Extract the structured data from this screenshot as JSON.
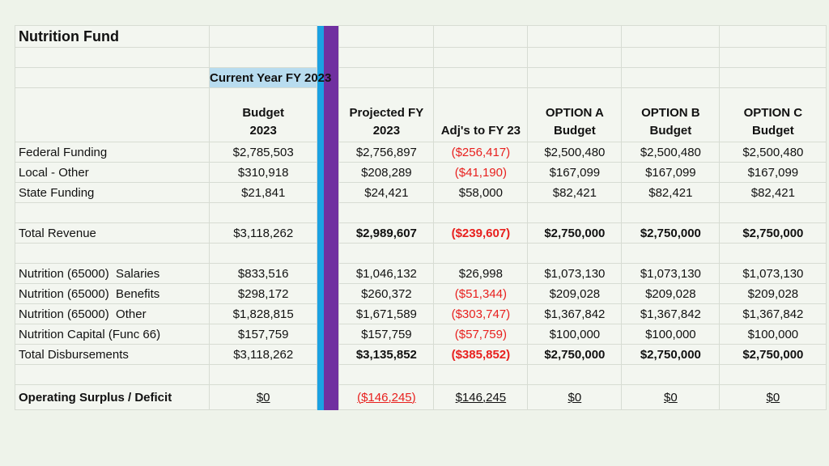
{
  "title": "Nutrition Fund",
  "current_year_label": "Current Year FY 2023",
  "headers": {
    "budget": [
      "Budget",
      "2023"
    ],
    "projected": [
      "Projected FY",
      "2023"
    ],
    "adj": "Adj's to FY 23",
    "option_a": [
      "OPTION A",
      "Budget"
    ],
    "option_b": [
      "OPTION B",
      "Budget"
    ],
    "option_c": [
      "OPTION C",
      "Budget"
    ]
  },
  "rows": {
    "federal": {
      "label": "Federal Funding",
      "budget": "$2,785,503",
      "projected": "$2,756,897",
      "adj": "($256,417)",
      "a": "$2,500,480",
      "b": "$2,500,480",
      "c": "$2,500,480"
    },
    "local": {
      "label": "Local - Other",
      "budget": "$310,918",
      "projected": "$208,289",
      "adj": "($41,190)",
      "a": "$167,099",
      "b": "$167,099",
      "c": "$167,099"
    },
    "state": {
      "label": "State Funding",
      "budget": "$21,841",
      "projected": "$24,421",
      "adj": "$58,000",
      "a": "$82,421",
      "b": "$82,421",
      "c": "$82,421"
    },
    "total_revenue": {
      "label": "Total Revenue",
      "budget": "$3,118,262",
      "projected": "$2,989,607",
      "adj": "($239,607)",
      "a": "$2,750,000",
      "b": "$2,750,000",
      "c": "$2,750,000"
    },
    "salaries": {
      "label": "Nutrition (65000)  Salaries",
      "budget": "$833,516",
      "projected": "$1,046,132",
      "adj": "$26,998",
      "a": "$1,073,130",
      "b": "$1,073,130",
      "c": "$1,073,130"
    },
    "benefits": {
      "label": "Nutrition (65000)  Benefits",
      "budget": "$298,172",
      "projected": "$260,372",
      "adj": "($51,344)",
      "a": "$209,028",
      "b": "$209,028",
      "c": "$209,028"
    },
    "other": {
      "label": "Nutrition (65000)  Other",
      "budget": "$1,828,815",
      "projected": "$1,671,589",
      "adj": "($303,747)",
      "a": "$1,367,842",
      "b": "$1,367,842",
      "c": "$1,367,842"
    },
    "capital": {
      "label": "Nutrition Capital (Func 66)",
      "budget": "$157,759",
      "projected": "$157,759",
      "adj": "($57,759)",
      "a": "$100,000",
      "b": "$100,000",
      "c": "$100,000"
    },
    "total_disb": {
      "label": "Total Disbursements",
      "budget": "$3,118,262",
      "projected": "$3,135,852",
      "adj": "($385,852)",
      "a": "$2,750,000",
      "b": "$2,750,000",
      "c": "$2,750,000"
    },
    "surplus": {
      "label": "Operating Surplus / Deficit",
      "budget": "$0",
      "projected": "($146,245)",
      "adj": "$146,245",
      "a": "$0",
      "b": "$0",
      "c": "$0"
    }
  },
  "colors": {
    "background": "#eef3ea",
    "negative": "#e8201e",
    "blue_bar": "#1ba1e2",
    "purple_bar": "#7030a0",
    "current_year_highlight": "#b8dcef"
  }
}
